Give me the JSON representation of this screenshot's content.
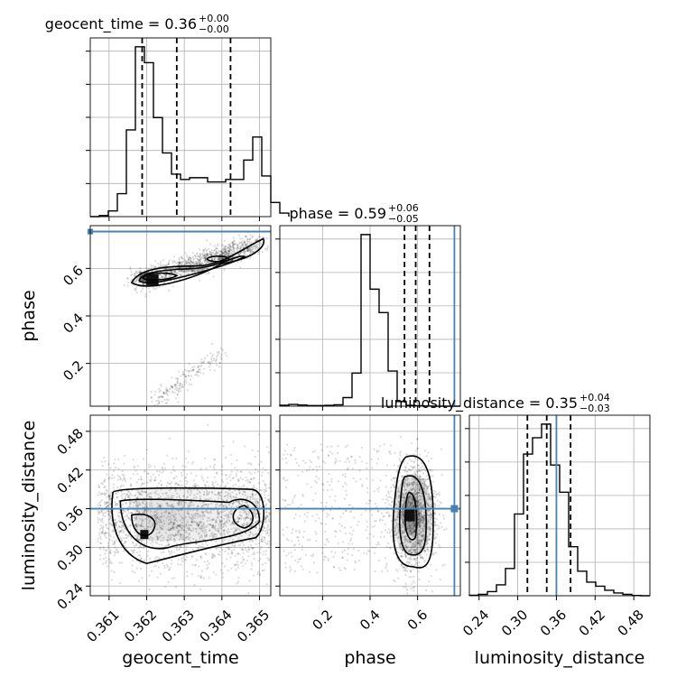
{
  "chart_data": {
    "type": "corner",
    "parameters": [
      "geocent_time",
      "phase",
      "luminosity_distance"
    ],
    "titles": [
      {
        "param": "geocent_time",
        "median": "0.36",
        "plus": "+0.00",
        "minus": "−0.00"
      },
      {
        "param": "phase",
        "median": "0.59",
        "plus": "+0.06",
        "minus": "−0.05"
      },
      {
        "param": "luminosity_distance",
        "median": "0.35",
        "plus": "+0.04",
        "minus": "−0.03"
      }
    ],
    "axis_ranges": {
      "geocent_time": [
        0.3605,
        0.3653
      ],
      "phase": [
        0.02,
        0.78
      ],
      "luminosity_distance": [
        0.225,
        0.505
      ]
    },
    "ticks": {
      "geocent_time": [
        "0.361",
        "0.362",
        "0.363",
        "0.364",
        "0.365"
      ],
      "phase": [
        "0.2",
        "0.4",
        "0.6"
      ],
      "luminosity_distance": [
        "0.24",
        "0.30",
        "0.36",
        "0.42",
        "0.48"
      ]
    },
    "truth": {
      "phase": 0.755,
      "luminosity_distance": 0.36
    },
    "quantiles": {
      "geocent_time": [
        0.36188,
        0.3628,
        0.36423
      ],
      "phase": [
        0.545,
        0.592,
        0.65
      ],
      "luminosity_distance": [
        0.315,
        0.345,
        0.382
      ]
    },
    "histograms": {
      "geocent_time": {
        "edges_start": 0.3605,
        "bin_width": 0.00024,
        "counts": [
          0,
          0.3,
          1.6,
          6.5,
          24.5,
          48.0,
          43.5,
          28.0,
          18.0,
          12.0,
          10.5,
          11.0,
          11.0,
          9.8,
          9.8,
          10.5,
          10.5,
          16.0,
          22.5,
          11.5,
          4.0,
          1.0
        ]
      },
      "phase": {
        "edges_start": 0.02,
        "bin_width": 0.038,
        "counts": [
          0.25,
          0.45,
          0.3,
          0.15,
          0.15,
          0.2,
          0.35,
          2.2,
          8.5,
          44.0,
          30.0,
          24.0,
          9.0,
          1.2,
          0.2,
          0.1,
          0.05,
          0,
          0,
          0
        ]
      },
      "luminosity_distance": {
        "edges_start": 0.225,
        "bin_width": 0.014,
        "counts": [
          0.2,
          0.5,
          1.5,
          4.0,
          10.0,
          30.0,
          52.0,
          58.0,
          63.0,
          48.0,
          38.0,
          18.0,
          9.0,
          5.0,
          3.5,
          2.0,
          1.0,
          0.5,
          0.1,
          0
        ]
      }
    },
    "grid": true,
    "truth_color": "#4682b4"
  }
}
